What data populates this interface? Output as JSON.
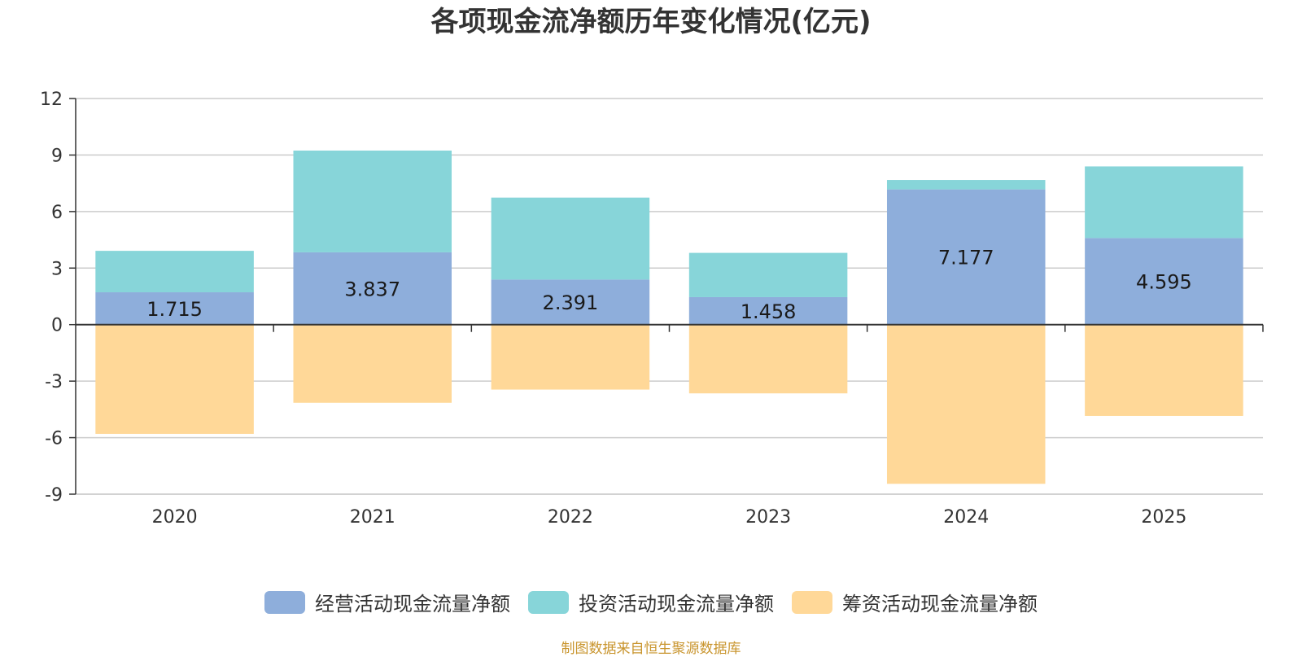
{
  "title": "各项现金流净额历年变化情况(亿元)",
  "source_note": "制图数据来自恒生聚源数据库",
  "legend": [
    {
      "label": "经营活动现金流量净额",
      "color": "#8eaedb"
    },
    {
      "label": "投资活动现金流量净额",
      "color": "#87d5d9"
    },
    {
      "label": "筹资活动现金流量净额",
      "color": "#ffd898"
    }
  ],
  "chart_data": {
    "type": "bar",
    "stacked": true,
    "title": "各项现金流净额历年变化情况(亿元)",
    "categories": [
      "2020",
      "2021",
      "2022",
      "2023",
      "2024",
      "2025"
    ],
    "series": [
      {
        "name": "经营活动现金流量净额",
        "color": "#8eaedb",
        "values": [
          1.715,
          3.837,
          2.391,
          1.458,
          7.177,
          4.595
        ],
        "labels": [
          "1.715",
          "3.837",
          "2.391",
          "1.458",
          "7.177",
          "4.595"
        ]
      },
      {
        "name": "投资活动现金流量净额",
        "color": "#87d5d9",
        "values": [
          2.2,
          5.4,
          4.35,
          2.35,
          0.5,
          3.8
        ]
      },
      {
        "name": "筹资活动现金流量净额",
        "color": "#ffd898",
        "values": [
          -5.8,
          -4.15,
          -3.45,
          -3.65,
          -8.45,
          -4.85
        ]
      }
    ],
    "ylim": [
      -9,
      12
    ],
    "yticks": [
      12,
      9,
      6,
      3,
      0,
      -3,
      -6,
      -9
    ],
    "grid": true,
    "legend_position": "bottom"
  }
}
